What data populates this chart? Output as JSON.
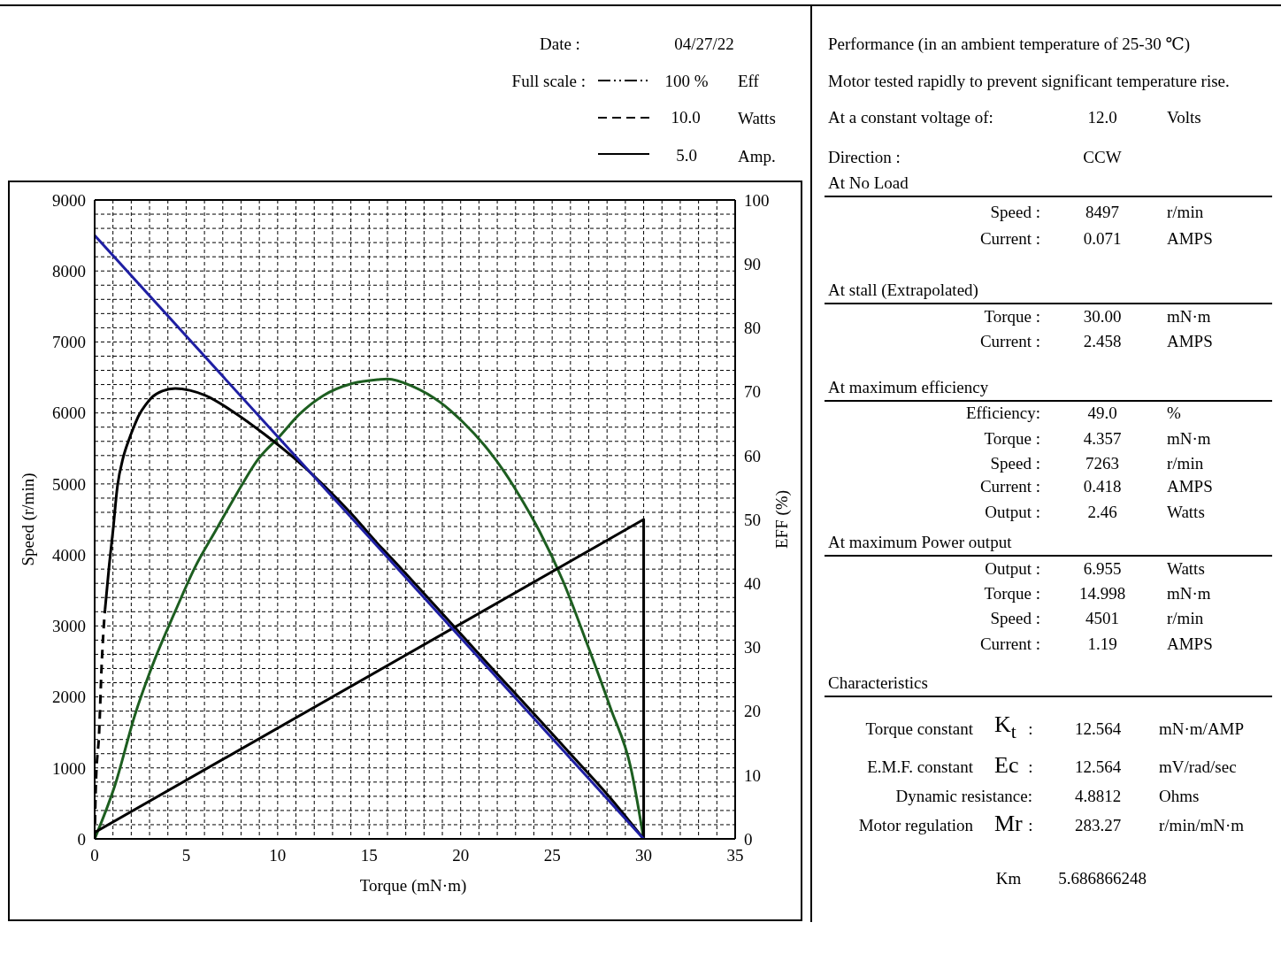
{
  "chart_data": [
    {
      "type": "line",
      "annotations": [
        "Date :",
        "04/27/22",
        "Full scale :",
        "100 %",
        "Eff",
        "10.0",
        "Watts",
        "5.0",
        "Amp."
      ],
      "xlabel": "Torque (mN·m)",
      "ylabel": "Speed (r/min)",
      "y2label": "EFF (%)",
      "xlim": [
        0,
        35
      ],
      "xticks": [
        0,
        {
          "value": 1,
          "label": null
        },
        {
          "value": 2,
          "label": null
        },
        {
          "value": 3,
          "label": null
        },
        {
          "value": 4,
          "label": null
        },
        5,
        {
          "value": 6,
          "label": null
        },
        {
          "value": 7,
          "label": null
        },
        {
          "value": 8,
          "label": null
        },
        {
          "value": 9,
          "label": null
        },
        10,
        {
          "value": 11,
          "label": null
        },
        {
          "value": 12,
          "label": null
        },
        {
          "value": 13,
          "label": null
        },
        {
          "value": 14,
          "label": null
        },
        15,
        {
          "value": 16,
          "label": null
        },
        {
          "value": 17,
          "label": null
        },
        {
          "value": 18,
          "label": null
        },
        {
          "value": 19,
          "label": null
        },
        20,
        {
          "value": 21,
          "label": null
        },
        {
          "value": 22,
          "label": null
        },
        {
          "value": 23,
          "label": null
        },
        {
          "value": 24,
          "label": null
        },
        25,
        {
          "value": 26,
          "label": null
        },
        {
          "value": 27,
          "label": null
        },
        {
          "value": 28,
          "label": null
        },
        {
          "value": 29,
          "label": null
        },
        30,
        {
          "value": 31,
          "label": null
        },
        {
          "value": 32,
          "label": null
        },
        {
          "value": 33,
          "label": null
        },
        {
          "value": 34,
          "label": null
        },
        35
      ],
      "ylim": [
        0,
        9000
      ],
      "yticks": [
        0,
        {
          "value": 200,
          "label": null
        },
        {
          "value": 400,
          "label": null
        },
        {
          "value": 600,
          "label": null
        },
        {
          "value": 800,
          "label": null
        },
        1000,
        {
          "value": 1200,
          "label": null
        },
        {
          "value": 1400,
          "label": null
        },
        {
          "value": 1600,
          "label": null
        },
        {
          "value": 1800,
          "label": null
        },
        2000,
        {
          "value": 2200,
          "label": null
        },
        {
          "value": 2400,
          "label": null
        },
        {
          "value": 2600,
          "label": null
        },
        {
          "value": 2800,
          "label": null
        },
        3000,
        {
          "value": 3200,
          "label": null
        },
        {
          "value": 3400,
          "label": null
        },
        {
          "value": 3600,
          "label": null
        },
        {
          "value": 3800,
          "label": null
        },
        4000,
        {
          "value": 4200,
          "label": null
        },
        {
          "value": 4400,
          "label": null
        },
        {
          "value": 4600,
          "label": null
        },
        {
          "value": 4800,
          "label": null
        },
        5000,
        {
          "value": 5200,
          "label": null
        },
        {
          "value": 5400,
          "label": null
        },
        {
          "value": 5600,
          "label": null
        },
        {
          "value": 5800,
          "label": null
        },
        6000,
        {
          "value": 6200,
          "label": null
        },
        {
          "value": 6400,
          "label": null
        },
        {
          "value": 6600,
          "label": null
        },
        {
          "value": 6800,
          "label": null
        },
        7000,
        {
          "value": 7200,
          "label": null
        },
        {
          "value": 7400,
          "label": null
        },
        {
          "value": 7600,
          "label": null
        },
        {
          "value": 7800,
          "label": null
        },
        8000,
        {
          "value": 8200,
          "label": null
        },
        {
          "value": 8400,
          "label": null
        },
        {
          "value": 8600,
          "label": null
        },
        {
          "value": 8800,
          "label": null
        },
        9000
      ],
      "y2lim": [
        0,
        100
      ],
      "y2ticks": [
        0,
        10,
        20,
        30,
        40,
        50,
        60,
        70,
        80,
        90,
        100
      ],
      "grid": true,
      "series": [
        {
          "color": "#1d5e20",
          "axis": "y2",
          "x": [
            0,
            1.1,
            2.2,
            3.3,
            4.4,
            5.5,
            6.6,
            7.7,
            8.9,
            10.1,
            11.2,
            12.5,
            14.1,
            15.5,
            16,
            17.4,
            18.9,
            20.1,
            21.3,
            22.4,
            23.4,
            24.3,
            25.6,
            26.9,
            28.2,
            29.3,
            30
          ],
          "values": [
            0,
            8.3,
            19.4,
            28.2,
            35.6,
            42.6,
            48.2,
            53.7,
            59.3,
            63,
            66.5,
            69.4,
            71.3,
            71.9,
            72,
            70.8,
            68.3,
            65.3,
            61.6,
            57.4,
            52.8,
            48.2,
            40.3,
            30.6,
            20.4,
            11.1,
            0
          ]
        },
        {
          "color": "#000000",
          "axis": "y2",
          "x": [
            0,
            30,
            30
          ],
          "values": [
            1,
            50,
            0
          ]
        },
        {
          "color": "#000000",
          "axis": "y2",
          "line_style": "dashed",
          "x": [
            0,
            0.06,
            0.25,
            0.38,
            0.47,
            0.57
          ],
          "values": [
            0,
            8,
            17,
            27,
            32,
            36
          ]
        },
        {
          "color": "#000000",
          "axis": "y2",
          "x": [
            0.57,
            0.8,
            1,
            1.24,
            1.56,
            1.85,
            2.13,
            2.4,
            2.8,
            3.16,
            3.7,
            4.4,
            5.2,
            6.05,
            7.65,
            9.25,
            10.86,
            12.46,
            14.06,
            15.5,
            16,
            18,
            20,
            22,
            24,
            26,
            28,
            30
          ],
          "values": [
            36,
            43,
            48.2,
            55.1,
            59.7,
            62.3,
            64.4,
            66.2,
            68,
            69.2,
            70.1,
            70.5,
            70.2,
            69.4,
            66.7,
            63.4,
            59.7,
            55.5,
            50.8,
            46.1,
            44.6,
            38.4,
            32.1,
            25.8,
            19.6,
            13.3,
            7,
            0
          ]
        },
        {
          "color": "#1f1fa3",
          "x": [
            0,
            30
          ],
          "values": [
            8500,
            0
          ]
        }
      ]
    },
    {
      "type": "other",
      "title": "Performance (in an ambient temperature of 25-30 ℃)",
      "subtitle": "Motor tested rapidly to prevent significant temperature rise.",
      "annotations": [
        "At a constant voltage of:",
        "12.0",
        "Volts",
        "Direction :",
        "CCW",
        "At No Load",
        "Speed :",
        "8497",
        "r/min",
        "Current :",
        "0.071",
        "AMPS",
        "At stall (Extrapolated)",
        "Torque :",
        "30.00",
        "mN·m",
        "Current :",
        "2.458",
        "AMPS",
        "At maximum efficiency",
        "Efficiency:",
        "49.0",
        "%",
        "Torque :",
        "4.357",
        "mN·m",
        "Speed :",
        "7263",
        "r/min",
        "Current :",
        "0.418",
        "AMPS",
        "Output :",
        "2.46",
        "Watts",
        "At maximum Power output",
        "Output :",
        "6.955",
        "Watts",
        "Torque :",
        "14.998",
        "mN·m",
        "Speed :",
        "4501",
        "r/min",
        "Current :",
        "1.19",
        "AMPS",
        "Characteristics",
        "Torque constant",
        "K$_{t}$",
        ":",
        "12.564",
        "mN·m/AMP",
        "E.M.F. constant",
        "Ec",
        ":",
        "12.564",
        "mV/rad/sec",
        "Dynamic resistance:",
        "4.8812",
        "Ohms",
        "Motor regulation",
        "Mr",
        ":",
        "283.27",
        "r/min/mN·m",
        "Km",
        "5.686866248"
      ]
    }
  ]
}
